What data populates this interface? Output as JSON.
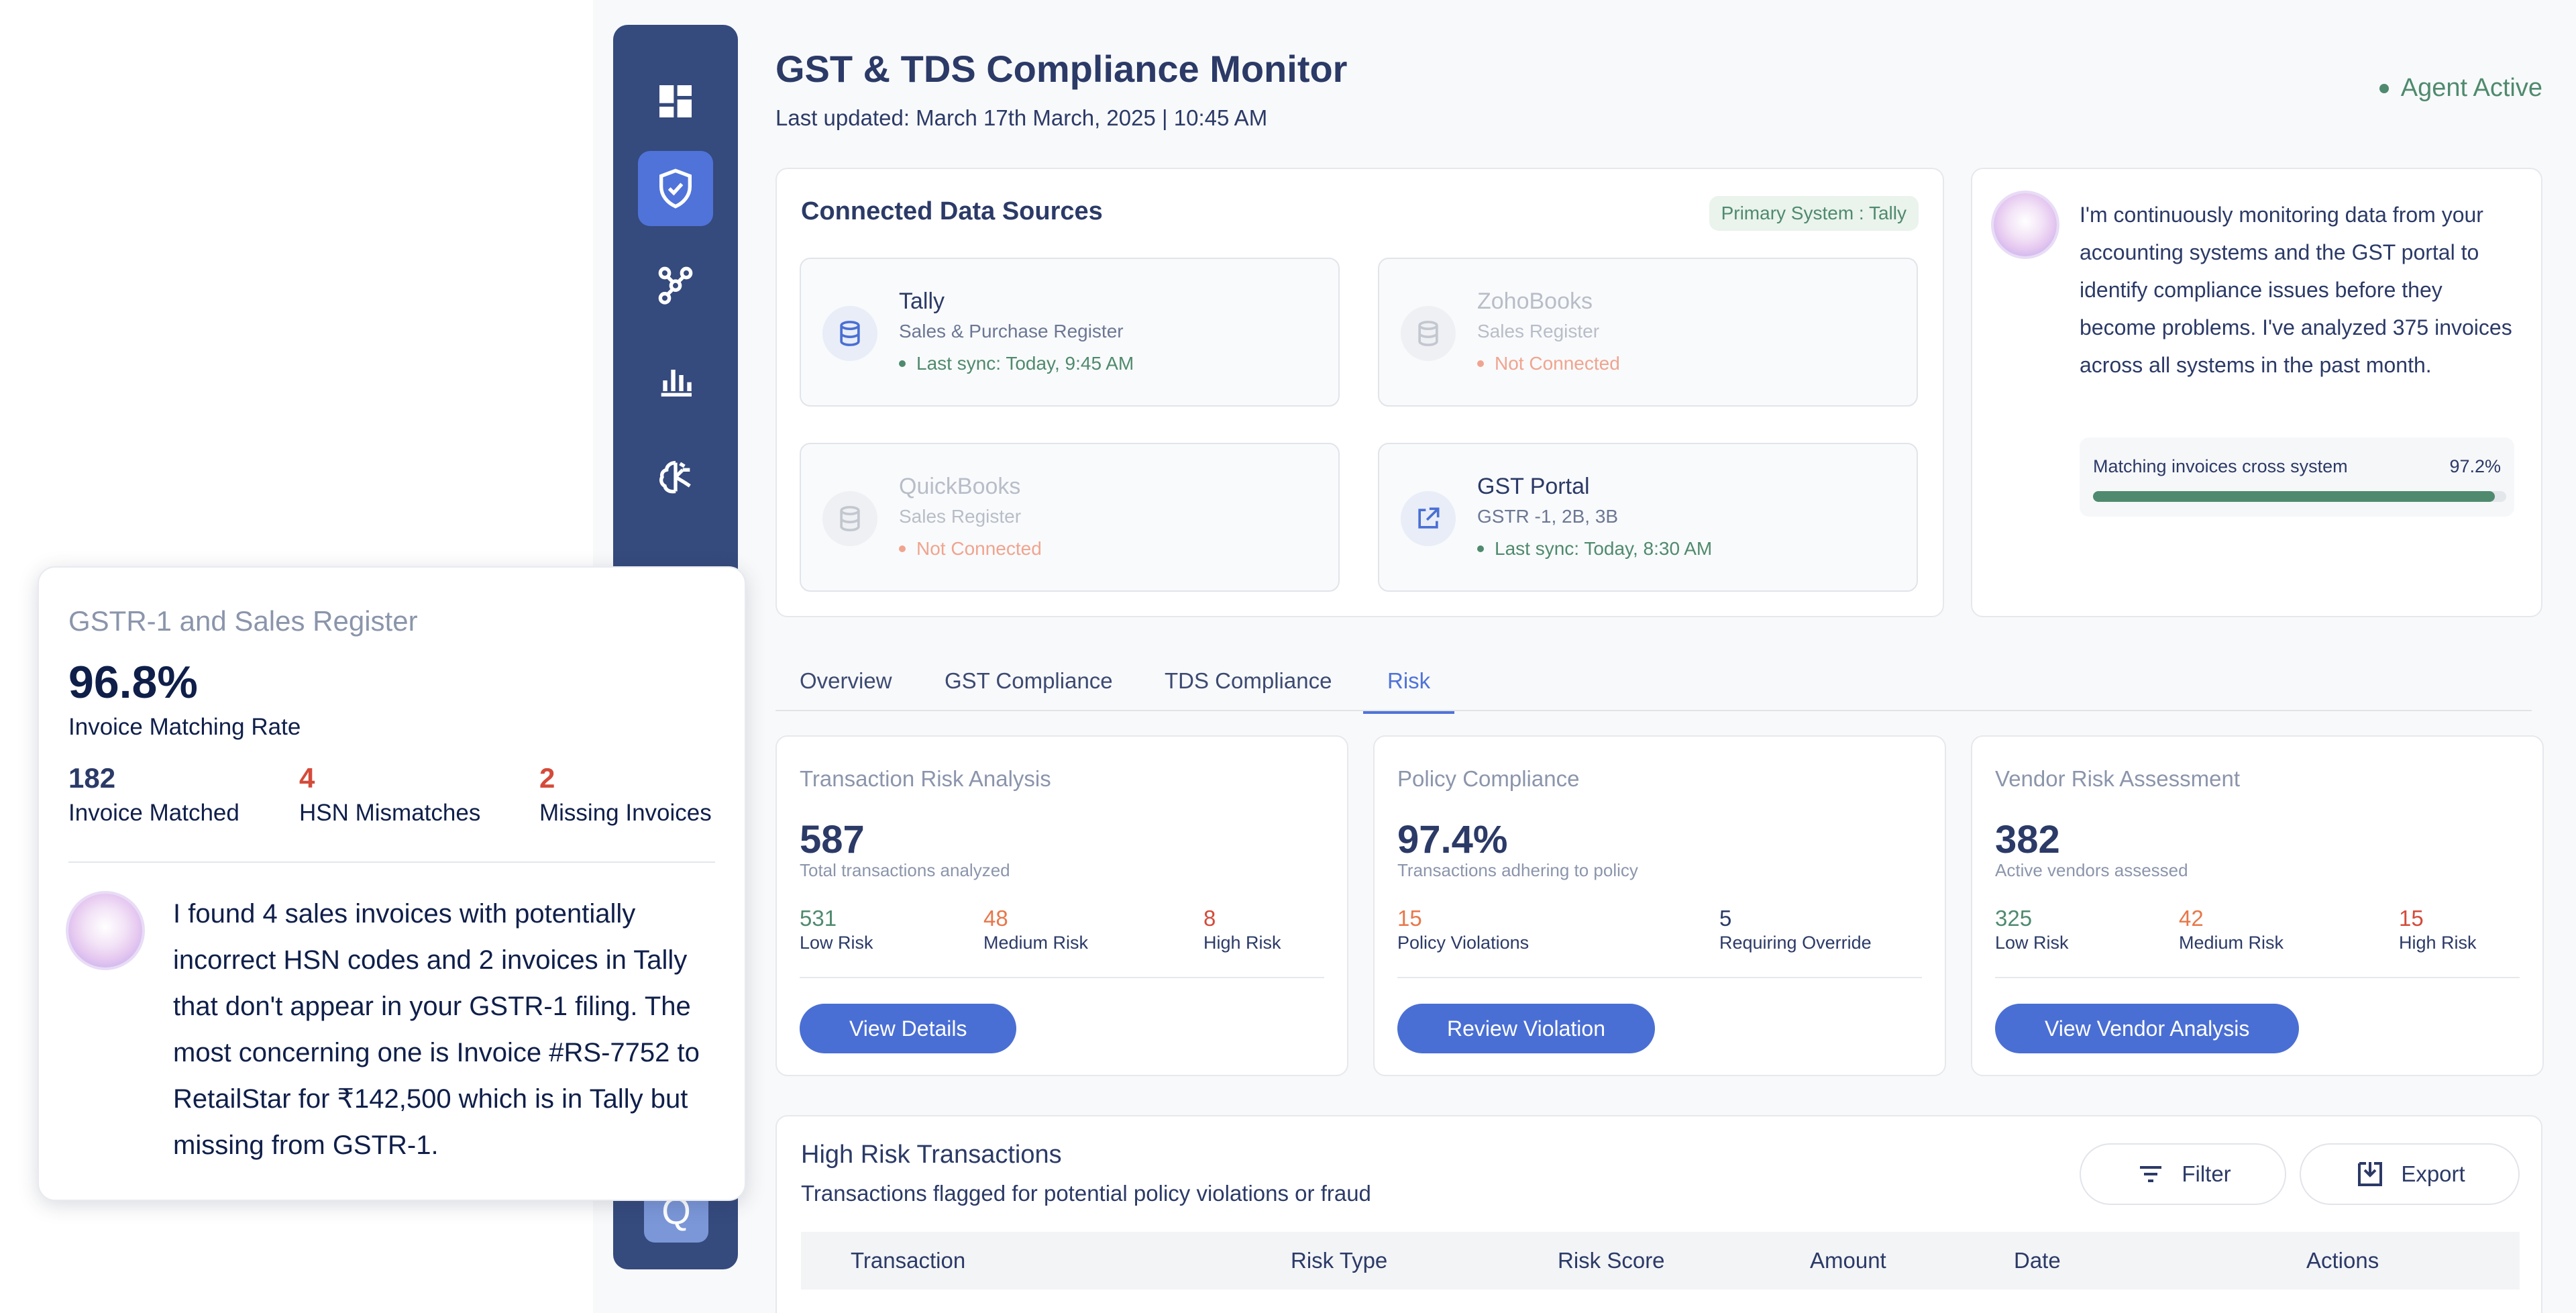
{
  "header": {
    "title": "GST & TDS Compliance Monitor",
    "last_updated": "Last updated: March 17th March, 2025 | 10:45 AM",
    "agent_status": "Agent Active"
  },
  "data_sources": {
    "title": "Connected Data Sources",
    "primary_badge": "Primary System : Tally",
    "items": [
      {
        "name": "Tally",
        "desc": "Sales & Purchase Register",
        "status": "Last sync: Today, 9:45 AM"
      },
      {
        "name": "ZohoBooks",
        "desc": "Sales Register",
        "status": "Not Connected"
      },
      {
        "name": "QuickBooks",
        "desc": "Sales Register",
        "status": "Not Connected"
      },
      {
        "name": "GST Portal",
        "desc": "GSTR -1, 2B, 3B",
        "status": "Last sync: Today, 8:30 AM"
      }
    ]
  },
  "agent_card": {
    "message": "I'm continuously monitoring data from your accounting systems and the GST portal to identify compliance issues before they become problems. I've analyzed 375 invoices across all systems in the past month.",
    "match_label": "Matching invoices cross system",
    "match_value": "97.2%",
    "match_fraction": 0.972
  },
  "tabs": [
    "Overview",
    "GST Compliance",
    "TDS Compliance",
    "Risk"
  ],
  "risk_cards": [
    {
      "title": "Transaction Risk Analysis",
      "value": "587",
      "sub": "Total transactions analyzed",
      "stats": [
        {
          "value": "531",
          "label": "Low Risk"
        },
        {
          "value": "48",
          "label": "Medium Risk"
        },
        {
          "value": "8",
          "label": "High Risk"
        }
      ],
      "button": "View Details"
    },
    {
      "title": "Policy Compliance",
      "value": "97.4%",
      "sub": "Transactions adhering to policy",
      "stats": [
        {
          "value": "15",
          "label": "Policy Violations"
        },
        {
          "value": "5",
          "label": "Requiring Override"
        }
      ],
      "button": "Review Violation"
    },
    {
      "title": "Vendor Risk Assessment",
      "value": "382",
      "sub": "Active vendors assessed",
      "stats": [
        {
          "value": "325",
          "label": "Low Risk"
        },
        {
          "value": "42",
          "label": "Medium Risk"
        },
        {
          "value": "15",
          "label": "High Risk"
        }
      ],
      "button": "View Vendor Analysis"
    }
  ],
  "high_risk": {
    "title": "High Risk Transactions",
    "subtitle": "Transactions flagged for potential policy violations or fraud",
    "filter_label": "Filter",
    "export_label": "Export",
    "columns": [
      "Transaction",
      "Risk Type",
      "Risk Score",
      "Amount",
      "Date",
      "Actions"
    ]
  },
  "popup": {
    "title": "GSTR-1 and Sales Register",
    "rate": "96.8%",
    "rate_label": "Invoice Matching Rate",
    "stats": [
      {
        "value": "182",
        "label": "Invoice Matched"
      },
      {
        "value": "4",
        "label": "HSN Mismatches"
      },
      {
        "value": "2",
        "label": "Missing Invoices"
      }
    ],
    "message": "I found 4 sales invoices with potentially incorrect HSN codes and 2 invoices in Tally that don't appear in your GSTR-1 filing. The most concerning one is Invoice #RS-7752 to RetailStar for ₹142,500 which is in Tally but missing from GSTR-1."
  },
  "sidebar": {
    "bottom_tile": "Q"
  }
}
